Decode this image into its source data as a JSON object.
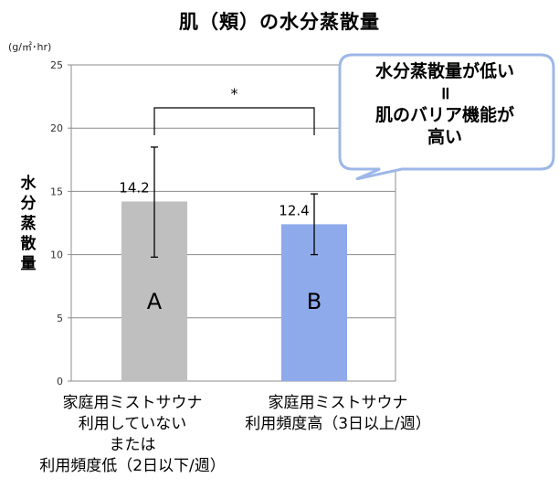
{
  "chart_data": {
    "type": "bar",
    "title": "肌（頬）の水分蒸散量",
    "unit": "(g/㎡･hr)",
    "ylabel": "水分蒸散量",
    "ylim": [
      0,
      25
    ],
    "yticks": [
      0,
      5,
      10,
      15,
      20,
      25
    ],
    "categories": [
      "家庭用ミストサウナ\n利用していない\nまたは\n利用頻度低（2日以下/週）",
      "家庭用ミストサウナ\n利用頻度高（3日以上/週）"
    ],
    "values": [
      14.2,
      12.4
    ],
    "value_labels": [
      "14.2",
      "12.4"
    ],
    "bar_letters": [
      "A",
      "B"
    ],
    "error_upper": [
      18.5,
      14.8
    ],
    "error_lower": [
      9.8,
      10.0
    ],
    "bar_colors": [
      "#bfbfbf",
      "#8eaaea"
    ],
    "significance": "*",
    "grid": true
  },
  "callout": {
    "text": "水分蒸散量が低い\n॥\n肌のバリア機能が\n高い",
    "border_color": "#9db7e8"
  }
}
